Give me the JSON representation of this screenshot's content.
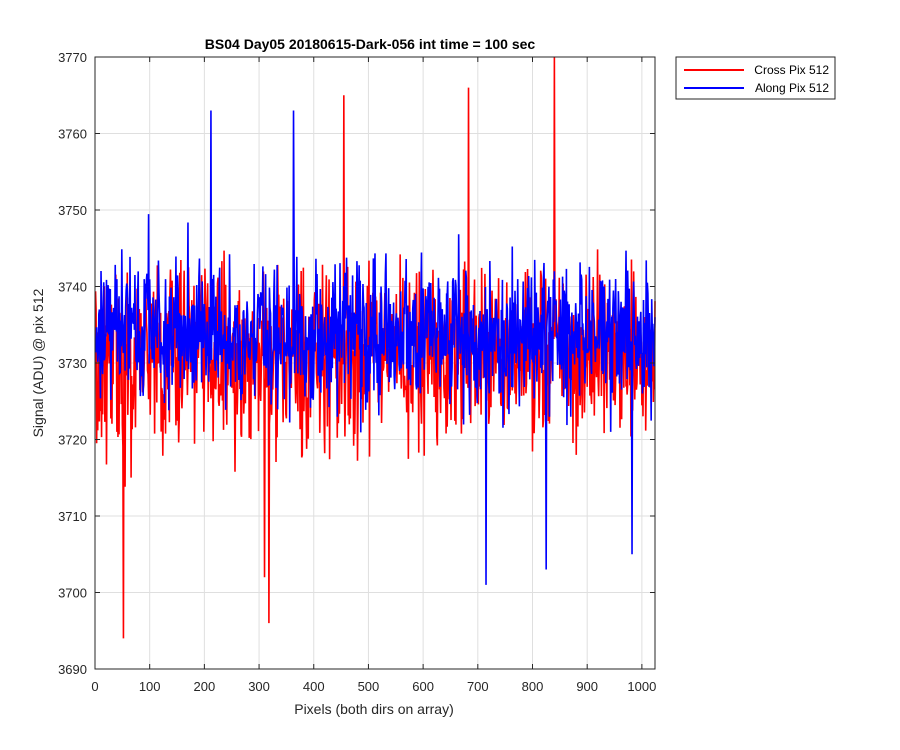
{
  "chart_data": {
    "type": "line",
    "title": "BS04 Day05 20180615-Dark-056 int time = 100 sec",
    "xlabel": "Pixels (both dirs on array)",
    "ylabel": "Signal (ADU) @ pix 512",
    "xlim": [
      0,
      1024
    ],
    "ylim": [
      3690,
      3770
    ],
    "xticks": [
      0,
      100,
      200,
      300,
      400,
      500,
      600,
      700,
      800,
      900,
      1000
    ],
    "yticks": [
      3690,
      3700,
      3710,
      3720,
      3730,
      3740,
      3750,
      3760,
      3770
    ],
    "grid": true,
    "legend_position": "outside-top-right",
    "series": [
      {
        "name": "Cross Pix 512",
        "color": "#ff0000",
        "x_range": [
          1,
          1024
        ],
        "num_points": 1024,
        "mean": 3731,
        "approx_range": [
          3694,
          3770
        ],
        "key_points": [
          [
            52,
            3694
          ],
          [
            318,
            3696
          ],
          [
            310,
            3702
          ],
          [
            455,
            3765
          ],
          [
            683,
            3766
          ],
          [
            840,
            3770
          ]
        ]
      },
      {
        "name": "Along Pix 512",
        "color": "#0000ff",
        "x_range": [
          1,
          1024
        ],
        "num_points": 1024,
        "mean": 3734,
        "approx_range": [
          3701,
          3763
        ],
        "key_points": [
          [
            212,
            3763
          ],
          [
            363,
            3763
          ],
          [
            715,
            3701
          ],
          [
            825,
            3703
          ],
          [
            982,
            3705
          ]
        ]
      }
    ]
  }
}
